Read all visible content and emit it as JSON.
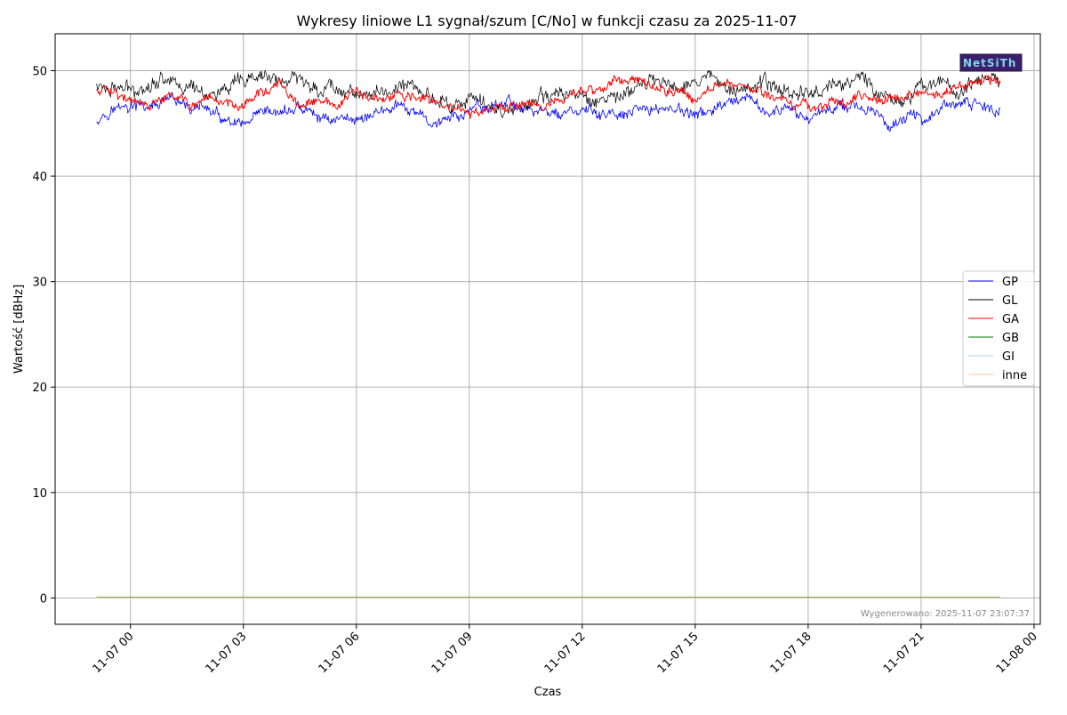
{
  "chart_data": {
    "type": "line",
    "title": "Wykresy liniowe L1 sygnał/szum [C/No] w funkcji czasu za 2025-11-07",
    "xlabel": "Czas",
    "ylabel": "Wartość [dBHz]",
    "xlim": [
      "2025-11-06 22:00",
      "2025-11-08 00:10"
    ],
    "ylim": [
      -2.5,
      53.5
    ],
    "grid": true,
    "legend_position": "right",
    "x_ticks": [
      {
        "value": "2025-11-07 00:00",
        "label": "11-07 00"
      },
      {
        "value": "2025-11-07 03:00",
        "label": "11-07 03"
      },
      {
        "value": "2025-11-07 06:00",
        "label": "11-07 06"
      },
      {
        "value": "2025-11-07 09:00",
        "label": "11-07 09"
      },
      {
        "value": "2025-11-07 12:00",
        "label": "11-07 12"
      },
      {
        "value": "2025-11-07 15:00",
        "label": "11-07 15"
      },
      {
        "value": "2025-11-07 18:00",
        "label": "11-07 18"
      },
      {
        "value": "2025-11-07 21:00",
        "label": "11-07 21"
      },
      {
        "value": "2025-11-08 00:00",
        "label": "11-08 00"
      }
    ],
    "y_ticks": [
      0,
      10,
      20,
      30,
      40,
      50
    ],
    "x": [
      "2025-11-06 23:06",
      "2025-11-06 23:30",
      "2025-11-07 00:00",
      "2025-11-07 00:30",
      "2025-11-07 01:00",
      "2025-11-07 01:30",
      "2025-11-07 02:00",
      "2025-11-07 02:30",
      "2025-11-07 03:00",
      "2025-11-07 03:30",
      "2025-11-07 04:00",
      "2025-11-07 04:30",
      "2025-11-07 05:00",
      "2025-11-07 05:30",
      "2025-11-07 06:00",
      "2025-11-07 06:30",
      "2025-11-07 07:00",
      "2025-11-07 07:30",
      "2025-11-07 08:00",
      "2025-11-07 08:30",
      "2025-11-07 09:00",
      "2025-11-07 09:30",
      "2025-11-07 10:00",
      "2025-11-07 10:30",
      "2025-11-07 11:00",
      "2025-11-07 11:30",
      "2025-11-07 12:00",
      "2025-11-07 12:30",
      "2025-11-07 13:00",
      "2025-11-07 13:30",
      "2025-11-07 14:00",
      "2025-11-07 14:30",
      "2025-11-07 15:00",
      "2025-11-07 15:30",
      "2025-11-07 16:00",
      "2025-11-07 16:30",
      "2025-11-07 17:00",
      "2025-11-07 17:30",
      "2025-11-07 18:00",
      "2025-11-07 18:30",
      "2025-11-07 19:00",
      "2025-11-07 19:30",
      "2025-11-07 20:00",
      "2025-11-07 20:30",
      "2025-11-07 21:00",
      "2025-11-07 21:30",
      "2025-11-07 22:00",
      "2025-11-07 22:30",
      "2025-11-07 23:06"
    ],
    "series": [
      {
        "name": "GP",
        "color": "#0000ff",
        "values": [
          45.5,
          46.5,
          46.5,
          46.5,
          47.0,
          46.5,
          46.5,
          45.0,
          44.5,
          45.5,
          46.0,
          46.5,
          45.5,
          45.5,
          45.5,
          46.0,
          46.5,
          46.0,
          45.0,
          45.5,
          46.0,
          46.5,
          47.0,
          46.5,
          46.0,
          46.0,
          46.0,
          46.0,
          45.5,
          46.0,
          46.5,
          46.5,
          45.5,
          46.5,
          46.5,
          47.0,
          46.0,
          46.0,
          45.5,
          46.5,
          47.0,
          46.5,
          45.0,
          45.5,
          45.5,
          46.5,
          46.5,
          47.0,
          46.0
        ]
      },
      {
        "name": "GL",
        "color": "#000000",
        "values": [
          48.5,
          48.5,
          48.0,
          49.0,
          49.5,
          48.5,
          48.0,
          48.0,
          48.5,
          49.5,
          49.0,
          49.0,
          48.5,
          48.5,
          48.0,
          47.5,
          48.5,
          48.5,
          47.5,
          47.0,
          47.0,
          46.5,
          46.5,
          47.0,
          47.0,
          48.0,
          47.5,
          47.5,
          47.5,
          48.5,
          49.0,
          48.5,
          49.5,
          49.0,
          49.0,
          48.5,
          48.5,
          48.0,
          48.0,
          48.5,
          49.0,
          49.0,
          48.0,
          47.0,
          48.5,
          49.0,
          48.0,
          48.5,
          49.0
        ]
      },
      {
        "name": "GA",
        "color": "#ff0000",
        "values": [
          48.0,
          48.5,
          47.0,
          46.5,
          47.5,
          47.0,
          46.5,
          47.0,
          47.0,
          48.0,
          48.5,
          46.5,
          47.0,
          46.5,
          48.0,
          47.0,
          47.5,
          47.5,
          47.0,
          46.5,
          46.0,
          46.0,
          46.5,
          47.0,
          47.0,
          47.0,
          48.0,
          48.5,
          49.0,
          49.5,
          48.5,
          48.0,
          47.5,
          48.5,
          49.0,
          48.5,
          47.5,
          47.0,
          46.5,
          47.0,
          47.0,
          47.5,
          47.5,
          47.5,
          48.0,
          47.5,
          48.5,
          49.0,
          49.0
        ]
      },
      {
        "name": "GB",
        "color": "#008000",
        "values": [
          0.05,
          0.05,
          0.05,
          0.05,
          0.05,
          0.05,
          0.05,
          0.05,
          0.05,
          0.05,
          0.05,
          0.05,
          0.05,
          0.05,
          0.05,
          0.05,
          0.05,
          0.05,
          0.05,
          0.05,
          0.05,
          0.05,
          0.05,
          0.05,
          0.05,
          0.05,
          0.05,
          0.05,
          0.05,
          0.05,
          0.05,
          0.05,
          0.05,
          0.05,
          0.05,
          0.05,
          0.05,
          0.05,
          0.05,
          0.05,
          0.05,
          0.05,
          0.05,
          0.05,
          0.05,
          0.05,
          0.05,
          0.05,
          0.05
        ]
      },
      {
        "name": "GI",
        "color": "#a6c8f0",
        "values": [
          0,
          0,
          0,
          0,
          0,
          0,
          0,
          0,
          0,
          0,
          0,
          0,
          0,
          0,
          0,
          0,
          0,
          0,
          0,
          0,
          0,
          0,
          0,
          0,
          0,
          0,
          0,
          0,
          0,
          0,
          0,
          0,
          0,
          0,
          0,
          0,
          0,
          0,
          0,
          0,
          0,
          0,
          0,
          0,
          0,
          0,
          0,
          0,
          0
        ]
      },
      {
        "name": "inne",
        "color": "#ffc896",
        "values": [
          0,
          0,
          0,
          0,
          0,
          0,
          0,
          0,
          0,
          0,
          0,
          0,
          0,
          0,
          0,
          0,
          0,
          0,
          0,
          0,
          0,
          0,
          0,
          0,
          0,
          0,
          0,
          0,
          0,
          0,
          0,
          0,
          0,
          0,
          0,
          0,
          0,
          0,
          0,
          0,
          0,
          0,
          0,
          0,
          0,
          0,
          0,
          0,
          0
        ]
      }
    ],
    "annotations": [
      {
        "text": "Wygenerowano: 2025-11-07 23:07:37",
        "position": "bottom-right"
      }
    ]
  },
  "logo": {
    "text": "NetSiTh"
  }
}
